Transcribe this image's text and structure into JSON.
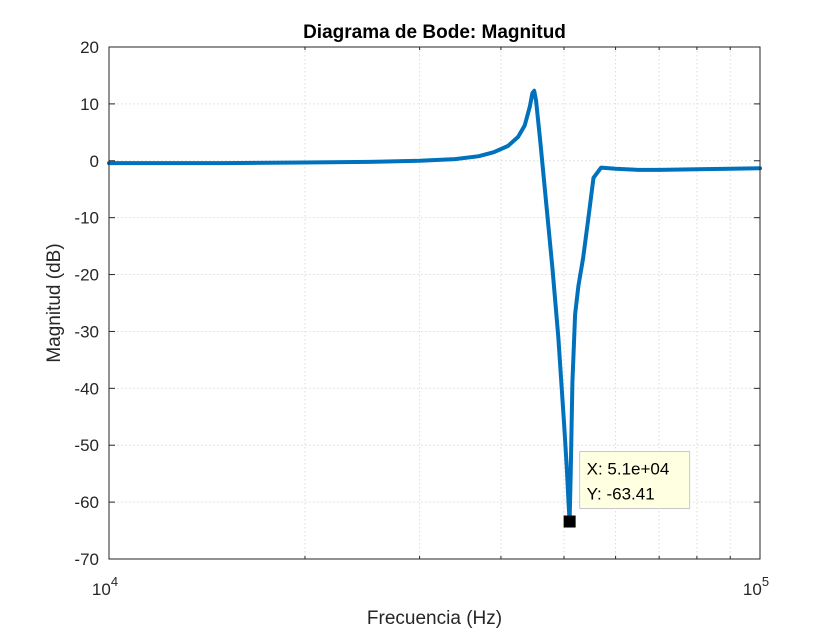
{
  "chart_data": {
    "type": "line",
    "title": "Diagrama de Bode: Magnitud",
    "xlabel": "Frecuencia (Hz)",
    "ylabel": "Magnitud (dB)",
    "x_scale": "log",
    "xlim": [
      10000,
      100000
    ],
    "ylim": [
      -70,
      20
    ],
    "grid": true,
    "x_ticks": [
      10000,
      100000
    ],
    "x_tick_labels": [
      {
        "base": "10",
        "exp": "4"
      },
      {
        "base": "10",
        "exp": "5"
      }
    ],
    "y_ticks": [
      20,
      10,
      0,
      -10,
      -20,
      -30,
      -40,
      -50,
      -60,
      -70
    ],
    "y_tick_labels": [
      "20",
      "10",
      "0",
      "-10",
      "-20",
      "-30",
      "-40",
      "-50",
      "-60",
      "-70"
    ],
    "series": [
      {
        "color": "#0072BD",
        "x": [
          10000,
          15000,
          20000,
          25000,
          30000,
          34000,
          37000,
          39000,
          41000,
          42500,
          43500,
          44300,
          44700,
          45000,
          45300,
          46000,
          47000,
          48000,
          49000,
          50000,
          50500,
          50800,
          51000,
          51200,
          51500,
          52000,
          52600,
          53500,
          54500,
          55500,
          57000,
          60000,
          65000,
          70000,
          80000,
          90000,
          100000
        ],
        "y": [
          -0.4,
          -0.4,
          -0.3,
          -0.2,
          0,
          0.3,
          0.8,
          1.5,
          2.6,
          4.2,
          6.2,
          9.5,
          11.9,
          12.3,
          10.5,
          3,
          -8,
          -19,
          -31,
          -46,
          -54,
          -60,
          -63.4,
          -55,
          -39,
          -27,
          -22,
          -17,
          -10,
          -3,
          -1.2,
          -1.4,
          -1.6,
          -1.6,
          -1.5,
          -1.4,
          -1.3
        ]
      }
    ],
    "datatip": {
      "x": 51000,
      "y": -63.41,
      "x_text": "X: 5.1e+04",
      "y_text": "Y: -63.41"
    }
  }
}
